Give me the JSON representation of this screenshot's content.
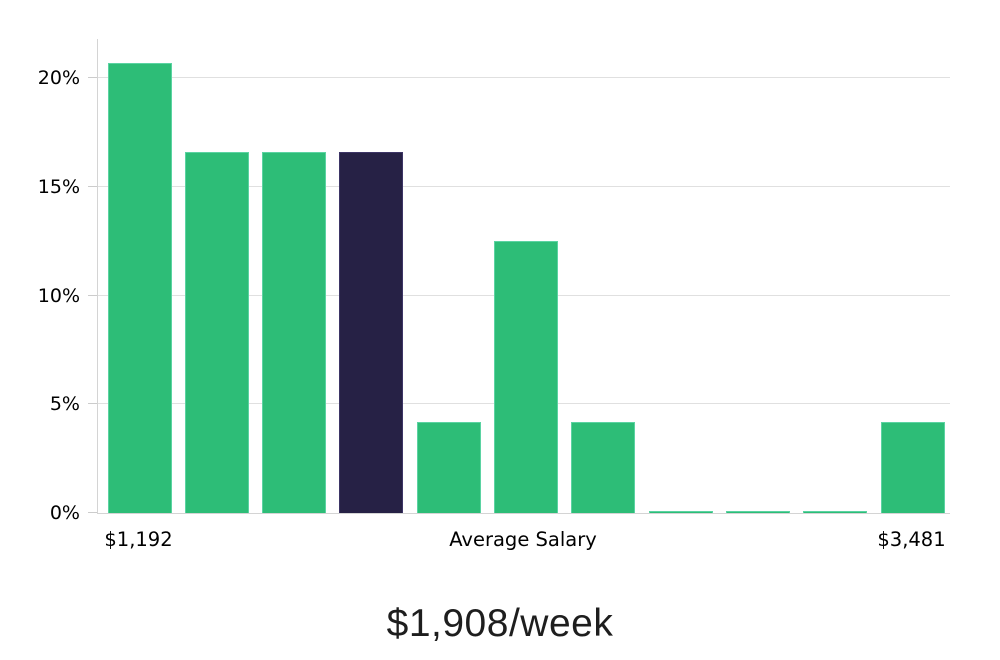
{
  "chart_data": {
    "type": "bar",
    "values": [
      20.7,
      16.6,
      16.6,
      16.6,
      4.2,
      12.5,
      4.2,
      0.1,
      0.1,
      0.1,
      4.2
    ],
    "highlight_index": 3,
    "yticks": [
      {
        "value": 0,
        "label": "0%"
      },
      {
        "value": 5,
        "label": "5%"
      },
      {
        "value": 10,
        "label": "10%"
      },
      {
        "value": 15,
        "label": "15%"
      },
      {
        "value": 20,
        "label": "20%"
      }
    ],
    "ylim": [
      0,
      21.8
    ],
    "grid": true,
    "xlabels": {
      "left": "$1,192",
      "center": "Average Salary",
      "right": "$3,481"
    },
    "footer": "$1,908/week",
    "colors": {
      "bar": "#2dbd77",
      "bar_border": "#5bd3a2",
      "highlight": "#262145",
      "highlight_border": "#3d3566",
      "gridline": "#e0e0e0",
      "axis": "#d4d4d4",
      "tick": "#cccccc",
      "label": "#000000",
      "footer_text": "#1e1e1e"
    }
  }
}
